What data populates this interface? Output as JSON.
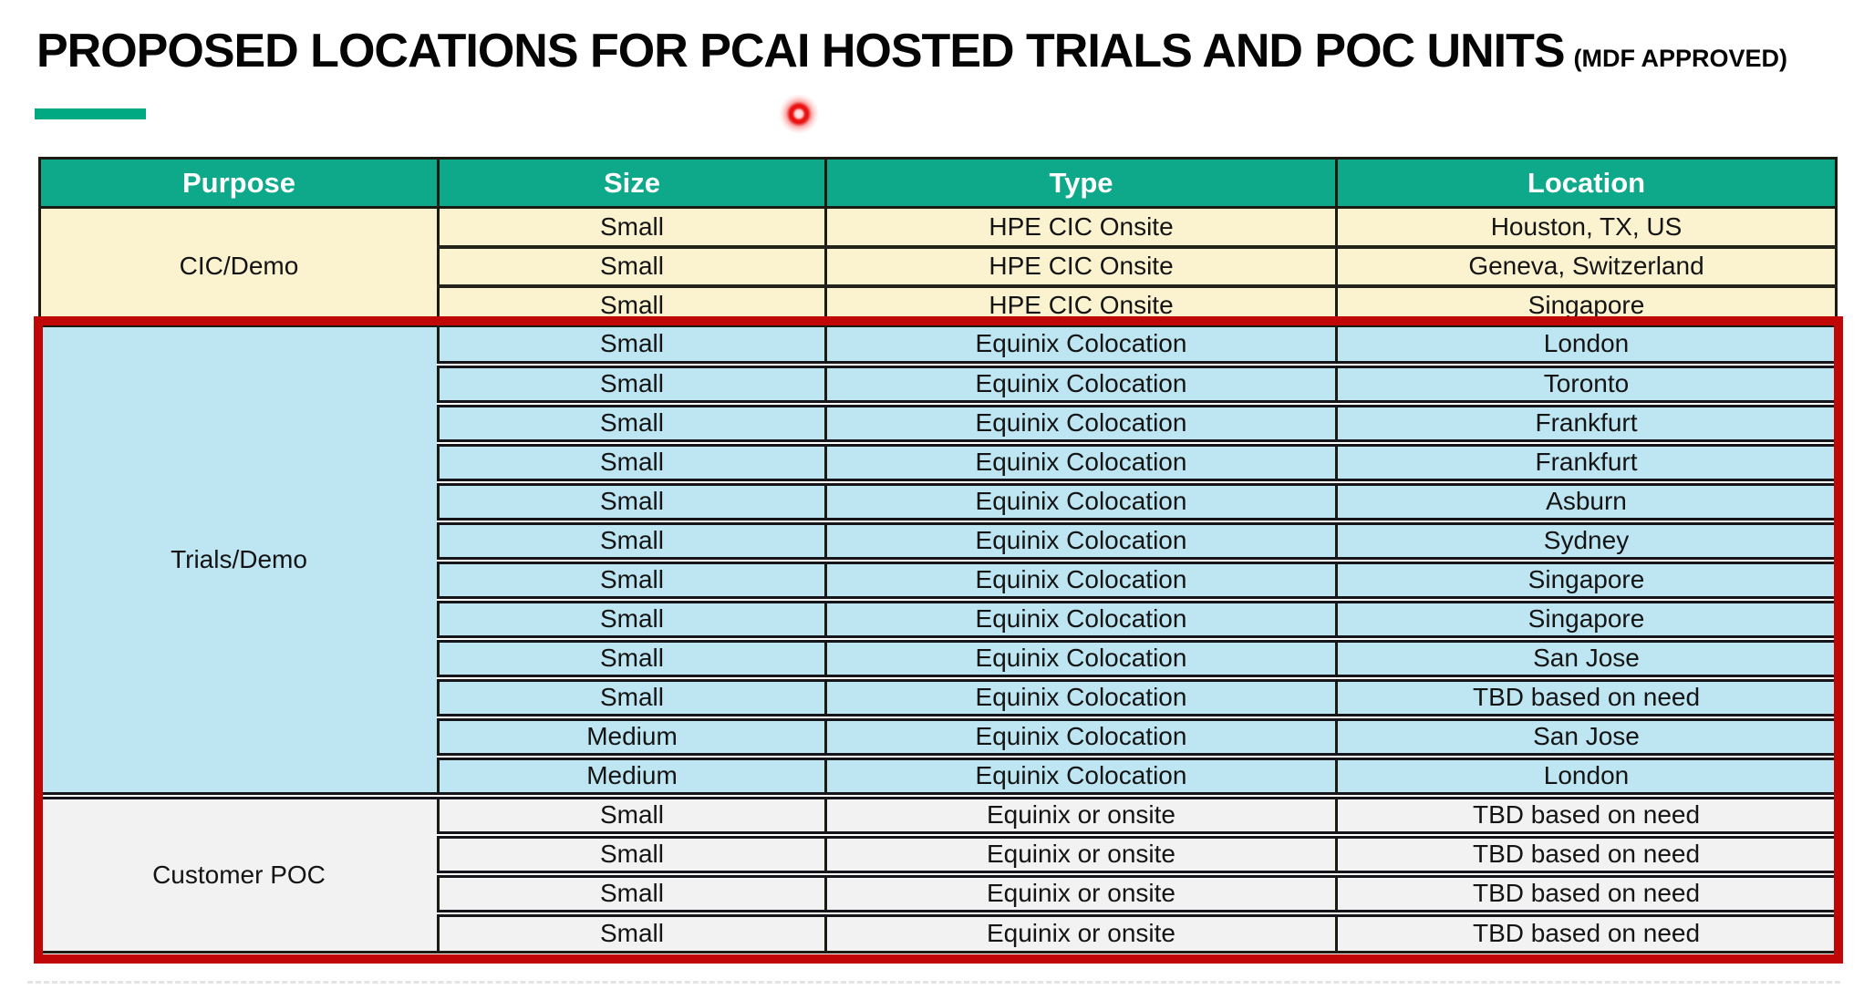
{
  "title": {
    "main": "PROPOSED LOCATIONS FOR PCAI HOSTED TRIALS AND POC UNITS",
    "suffix": "(MDF APPROVED)"
  },
  "colors": {
    "header_green": "#0ea98a",
    "accent_green": "#01A982",
    "cic_demo_row": "#fbf2cf",
    "trials_demo_row": "#bde6f2",
    "customer_poc_row": "#f2f2f2",
    "highlight_red": "#c00606",
    "grid_line": "#1b1b12"
  },
  "table": {
    "headers": [
      "Purpose",
      "Size",
      "Type",
      "Location"
    ],
    "sections": [
      {
        "purpose": "CIC/Demo",
        "theme": "cream",
        "rows": [
          [
            "Small",
            "HPE CIC Onsite",
            "Houston, TX, US"
          ],
          [
            "Small",
            "HPE CIC Onsite",
            "Geneva, Switzerland"
          ],
          [
            "Small",
            "HPE CIC Onsite",
            "Singapore"
          ]
        ]
      },
      {
        "purpose": "Trials/Demo",
        "theme": "blue",
        "rows": [
          [
            "Small",
            "Equinix Colocation",
            "London"
          ],
          [
            "Small",
            "Equinix Colocation",
            "Toronto"
          ],
          [
            "Small",
            "Equinix Colocation",
            "Frankfurt"
          ],
          [
            "Small",
            "Equinix Colocation",
            "Frankfurt"
          ],
          [
            "Small",
            "Equinix Colocation",
            "Asburn"
          ],
          [
            "Small",
            "Equinix Colocation",
            "Sydney"
          ],
          [
            "Small",
            "Equinix Colocation",
            "Singapore"
          ],
          [
            "Small",
            "Equinix Colocation",
            "Singapore"
          ],
          [
            "Small",
            "Equinix Colocation",
            "San Jose"
          ],
          [
            "Small",
            "Equinix Colocation",
            "TBD based on need"
          ],
          [
            "Medium",
            "Equinix Colocation",
            "San Jose"
          ],
          [
            "Medium",
            "Equinix Colocation",
            "London"
          ]
        ]
      },
      {
        "purpose": "Customer POC",
        "theme": "gray",
        "rows": [
          [
            "Small",
            "Equinix or onsite",
            "TBD based on need"
          ],
          [
            "Small",
            "Equinix or onsite",
            "TBD based on need"
          ],
          [
            "Small",
            "Equinix or onsite",
            "TBD based on need"
          ],
          [
            "Small",
            "Equinix or onsite",
            "TBD based on need"
          ]
        ]
      }
    ],
    "highlight": {
      "highlighted_sections": [
        "Trials/Demo",
        "Customer POC"
      ],
      "color": "#c00606"
    }
  },
  "annotations": {
    "laser_pointer": "red laser pointer dot below title"
  }
}
